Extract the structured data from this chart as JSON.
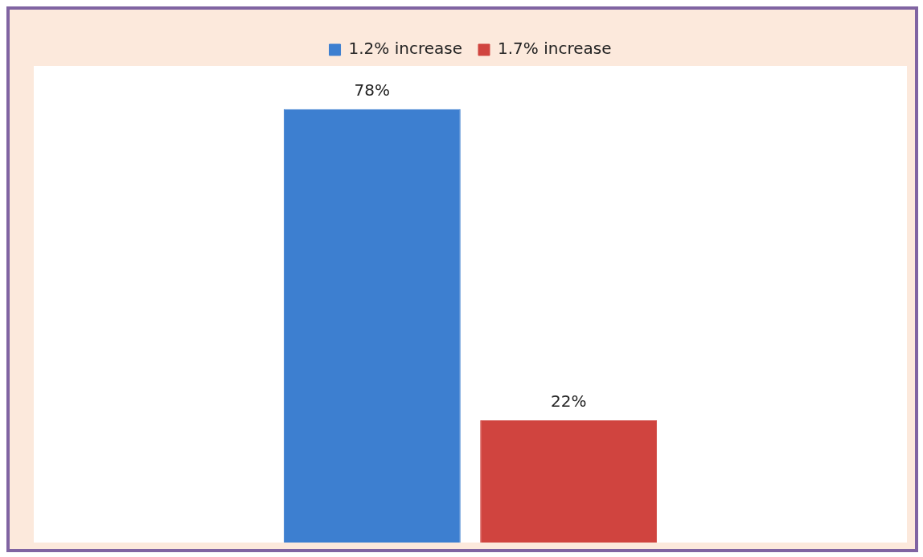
{
  "chart_data": {
    "type": "bar",
    "categories": [
      null
    ],
    "series": [
      {
        "name": "1.2% increase",
        "color": "#3d7fd0",
        "values": [
          78
        ],
        "value_labels": [
          "78%"
        ]
      },
      {
        "name": "1.7% increase",
        "color": "#d0443f",
        "values": [
          22
        ],
        "value_labels": [
          "22%"
        ]
      }
    ],
    "grid": false,
    "legend": "top"
  }
}
